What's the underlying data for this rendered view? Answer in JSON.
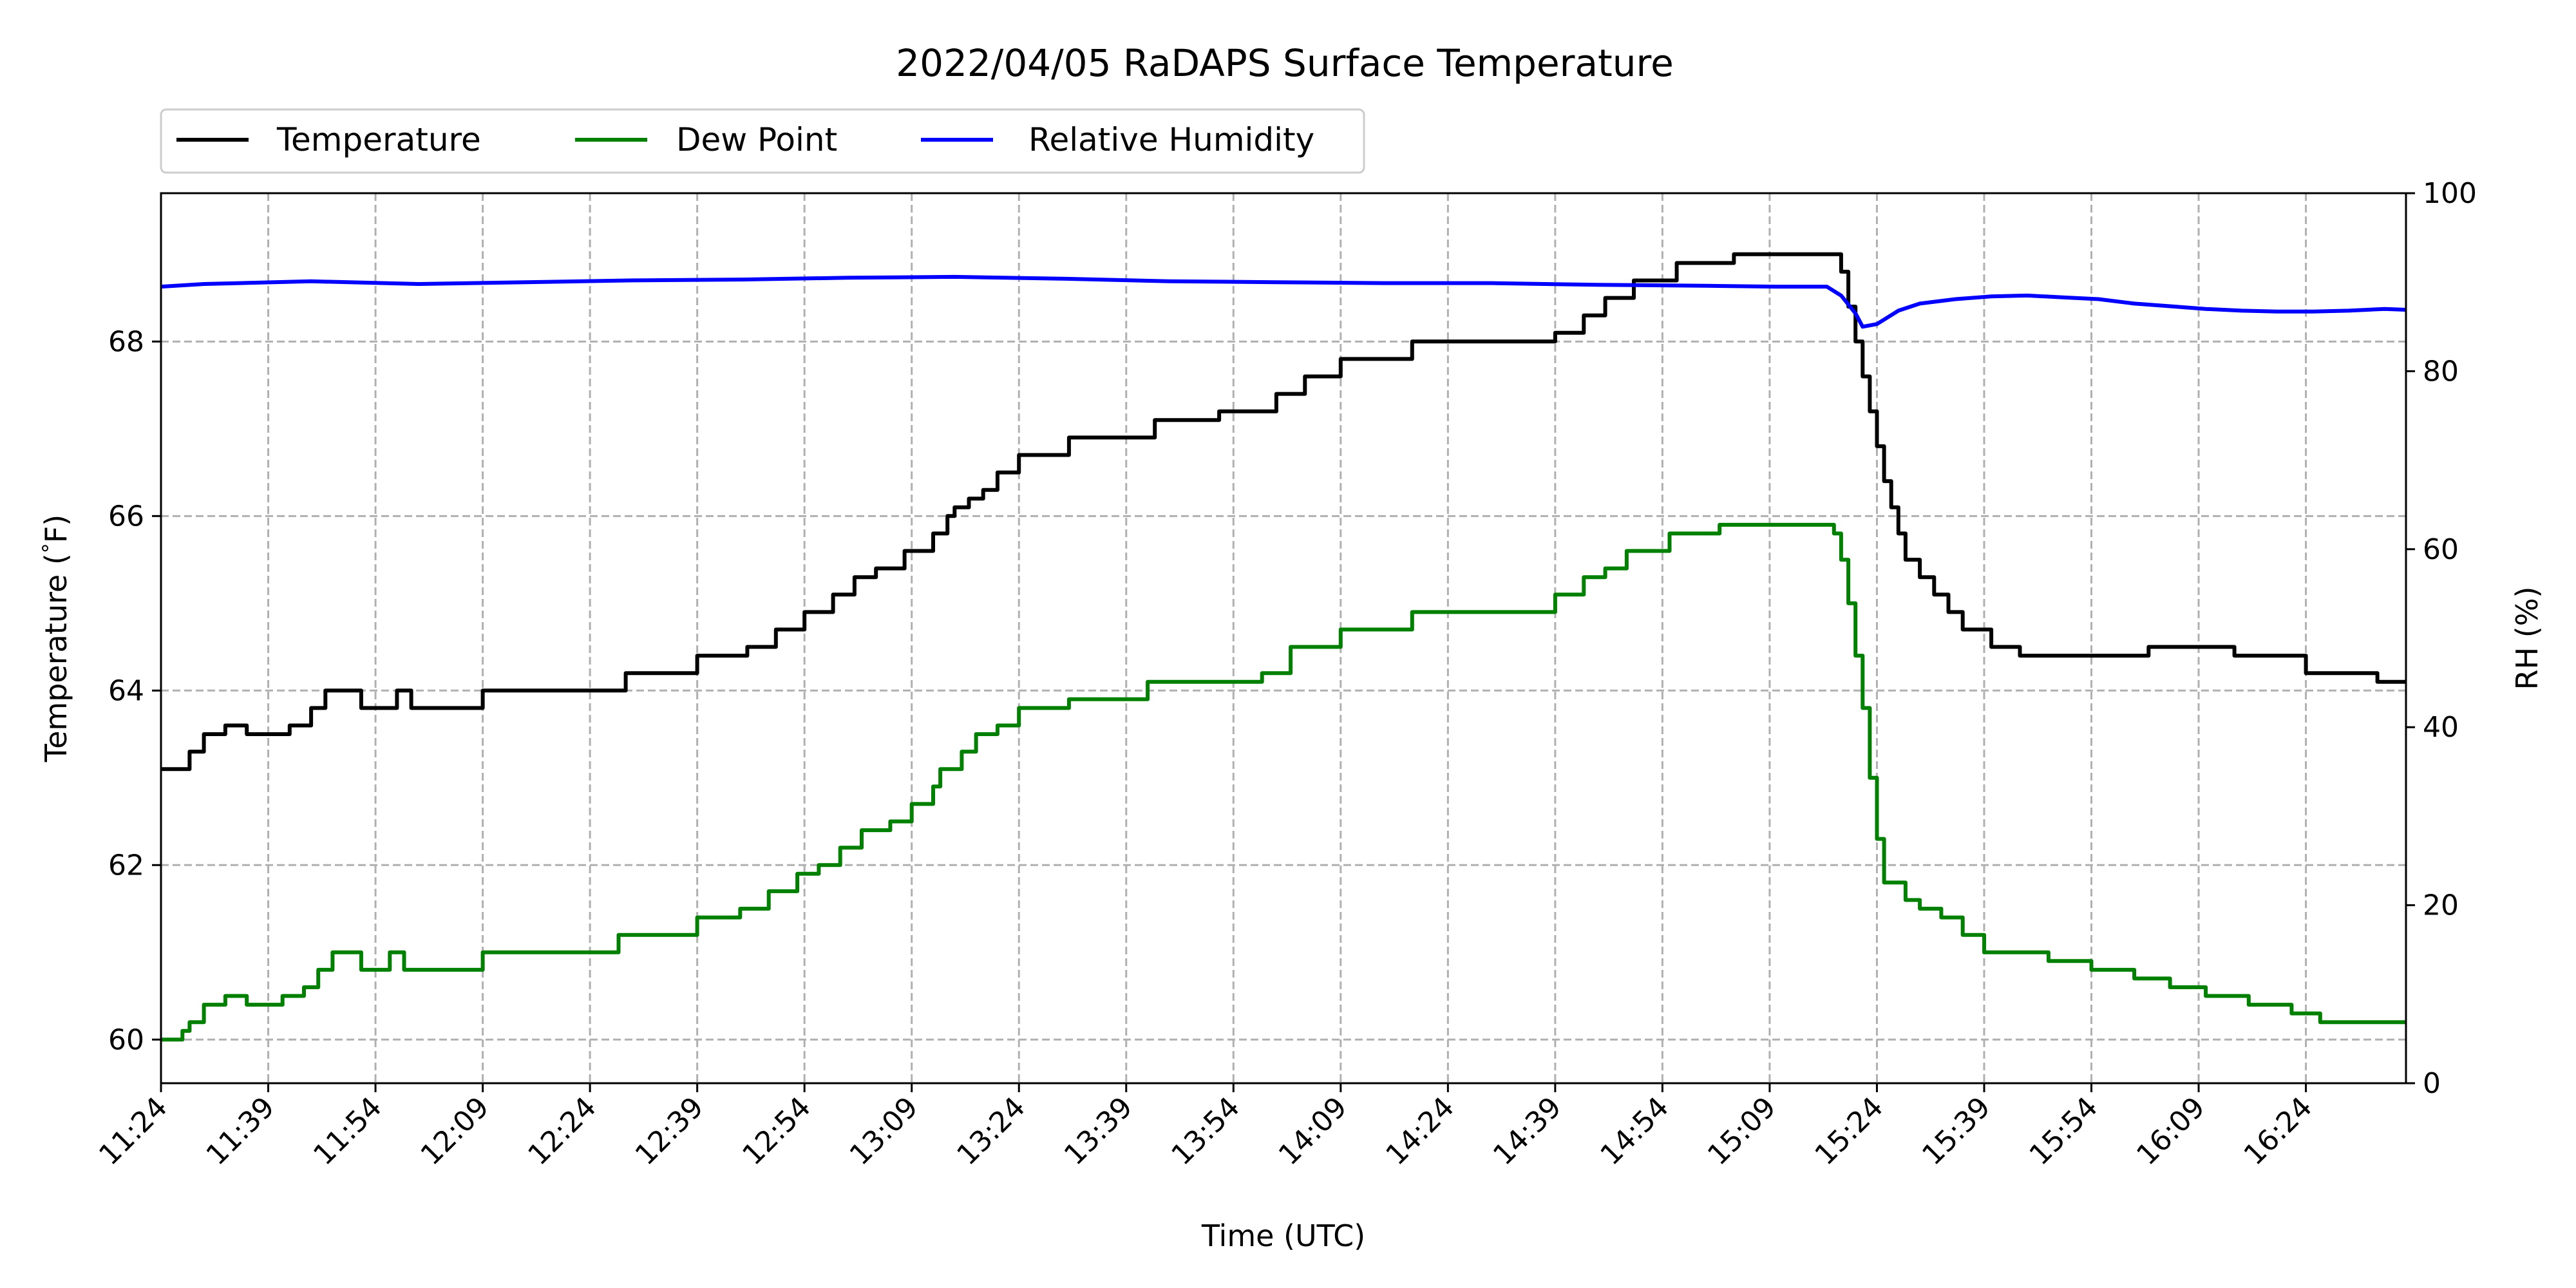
{
  "chart_data": {
    "type": "line",
    "title": "2022/04/05 RaDAPS Surface Temperature",
    "xlabel": "Time (UTC)",
    "ylabel": "Temperature ($^\\circ$F)",
    "ylabel_prefix": "Temperature (",
    "ylabel_deg": "°",
    "ylabel_suffix": "F)",
    "y2label": "RH (%)",
    "xlim_minutes": [
      "11:24",
      "16:38"
    ],
    "ylim": [
      59.5,
      69.7
    ],
    "y2lim": [
      0,
      100
    ],
    "grid": true,
    "legend_position": "top-left, above plot",
    "xticks": [
      "11:24",
      "11:39",
      "11:54",
      "12:09",
      "12:24",
      "12:39",
      "12:54",
      "13:09",
      "13:24",
      "13:39",
      "13:54",
      "14:09",
      "14:24",
      "14:39",
      "14:54",
      "15:09",
      "15:24",
      "15:39",
      "15:54",
      "16:09",
      "16:24"
    ],
    "yticks": [
      "60",
      "62",
      "64",
      "66",
      "68"
    ],
    "y2ticks": [
      "0",
      "20",
      "40",
      "60",
      "80",
      "100"
    ],
    "series": [
      {
        "name": "Temperature",
        "axis": "left",
        "color": "#000000",
        "step": true,
        "points": [
          [
            "11:24",
            63.1
          ],
          [
            "11:28",
            63.3
          ],
          [
            "11:30",
            63.5
          ],
          [
            "11:33",
            63.6
          ],
          [
            "11:36",
            63.5
          ],
          [
            "11:42",
            63.6
          ],
          [
            "11:45",
            63.8
          ],
          [
            "11:47",
            64.0
          ],
          [
            "11:52",
            63.8
          ],
          [
            "11:57",
            64.0
          ],
          [
            "11:59",
            63.8
          ],
          [
            "12:09",
            64.0
          ],
          [
            "12:19",
            64.0
          ],
          [
            "12:29",
            64.2
          ],
          [
            "12:33",
            64.2
          ],
          [
            "12:39",
            64.4
          ],
          [
            "12:46",
            64.5
          ],
          [
            "12:50",
            64.7
          ],
          [
            "12:54",
            64.9
          ],
          [
            "12:58",
            65.1
          ],
          [
            "13:01",
            65.3
          ],
          [
            "13:04",
            65.4
          ],
          [
            "13:08",
            65.6
          ],
          [
            "13:12",
            65.8
          ],
          [
            "13:14",
            66.0
          ],
          [
            "13:15",
            66.1
          ],
          [
            "13:17",
            66.2
          ],
          [
            "13:19",
            66.3
          ],
          [
            "13:21",
            66.5
          ],
          [
            "13:24",
            66.7
          ],
          [
            "13:30",
            66.7
          ],
          [
            "13:31",
            66.9
          ],
          [
            "13:43",
            67.1
          ],
          [
            "13:52",
            67.2
          ],
          [
            "13:58",
            67.2
          ],
          [
            "14:00",
            67.4
          ],
          [
            "14:04",
            67.6
          ],
          [
            "14:09",
            67.8
          ],
          [
            "14:19",
            68.0
          ],
          [
            "14:33",
            68.0
          ],
          [
            "14:39",
            68.1
          ],
          [
            "14:43",
            68.3
          ],
          [
            "14:46",
            68.5
          ],
          [
            "14:50",
            68.7
          ],
          [
            "14:56",
            68.9
          ],
          [
            "15:04",
            69.0
          ],
          [
            "15:18",
            69.0
          ],
          [
            "15:19",
            68.8
          ],
          [
            "15:20",
            68.4
          ],
          [
            "15:21",
            68.0
          ],
          [
            "15:22",
            67.6
          ],
          [
            "15:23",
            67.2
          ],
          [
            "15:24",
            66.8
          ],
          [
            "15:25",
            66.4
          ],
          [
            "15:26",
            66.1
          ],
          [
            "15:27",
            65.8
          ],
          [
            "15:28",
            65.5
          ],
          [
            "15:30",
            65.3
          ],
          [
            "15:32",
            65.1
          ],
          [
            "15:34",
            64.9
          ],
          [
            "15:36",
            64.7
          ],
          [
            "15:40",
            64.5
          ],
          [
            "15:44",
            64.4
          ],
          [
            "15:58",
            64.4
          ],
          [
            "16:02",
            64.5
          ],
          [
            "16:14",
            64.4
          ],
          [
            "16:24",
            64.2
          ],
          [
            "16:34",
            64.1
          ],
          [
            "16:38",
            64.1
          ]
        ]
      },
      {
        "name": "Dew Point",
        "axis": "left",
        "color": "#008000",
        "step": true,
        "points": [
          [
            "11:24",
            60.0
          ],
          [
            "11:27",
            60.1
          ],
          [
            "11:28",
            60.2
          ],
          [
            "11:30",
            60.4
          ],
          [
            "11:33",
            60.5
          ],
          [
            "11:36",
            60.4
          ],
          [
            "11:41",
            60.5
          ],
          [
            "11:44",
            60.6
          ],
          [
            "11:46",
            60.8
          ],
          [
            "11:48",
            61.0
          ],
          [
            "11:52",
            60.8
          ],
          [
            "11:56",
            61.0
          ],
          [
            "11:58",
            60.8
          ],
          [
            "12:04",
            60.8
          ],
          [
            "12:09",
            61.0
          ],
          [
            "12:17",
            61.0
          ],
          [
            "12:24",
            61.0
          ],
          [
            "12:28",
            61.2
          ],
          [
            "12:32",
            61.2
          ],
          [
            "12:39",
            61.4
          ],
          [
            "12:45",
            61.5
          ],
          [
            "12:49",
            61.7
          ],
          [
            "12:53",
            61.9
          ],
          [
            "12:56",
            62.0
          ],
          [
            "12:59",
            62.2
          ],
          [
            "13:02",
            62.4
          ],
          [
            "13:06",
            62.5
          ],
          [
            "13:09",
            62.7
          ],
          [
            "13:12",
            62.9
          ],
          [
            "13:13",
            63.1
          ],
          [
            "13:16",
            63.3
          ],
          [
            "13:18",
            63.5
          ],
          [
            "13:21",
            63.6
          ],
          [
            "13:24",
            63.8
          ],
          [
            "13:29",
            63.8
          ],
          [
            "13:31",
            63.9
          ],
          [
            "13:40",
            63.9
          ],
          [
            "13:42",
            64.1
          ],
          [
            "13:51",
            64.1
          ],
          [
            "13:58",
            64.2
          ],
          [
            "14:02",
            64.5
          ],
          [
            "14:09",
            64.7
          ],
          [
            "14:17",
            64.7
          ],
          [
            "14:19",
            64.9
          ],
          [
            "14:31",
            64.9
          ],
          [
            "14:39",
            65.1
          ],
          [
            "14:43",
            65.3
          ],
          [
            "14:46",
            65.4
          ],
          [
            "14:49",
            65.6
          ],
          [
            "14:55",
            65.8
          ],
          [
            "15:00",
            65.8
          ],
          [
            "15:02",
            65.9
          ],
          [
            "15:16",
            65.9
          ],
          [
            "15:18",
            65.8
          ],
          [
            "15:19",
            65.5
          ],
          [
            "15:20",
            65.0
          ],
          [
            "15:21",
            64.4
          ],
          [
            "15:22",
            63.8
          ],
          [
            "15:23",
            63.0
          ],
          [
            "15:24",
            62.3
          ],
          [
            "15:25",
            61.8
          ],
          [
            "15:28",
            61.6
          ],
          [
            "15:30",
            61.5
          ],
          [
            "15:33",
            61.4
          ],
          [
            "15:36",
            61.2
          ],
          [
            "15:39",
            61.0
          ],
          [
            "15:44",
            61.0
          ],
          [
            "15:48",
            60.9
          ],
          [
            "15:54",
            60.8
          ],
          [
            "16:00",
            60.7
          ],
          [
            "16:05",
            60.6
          ],
          [
            "16:10",
            60.5
          ],
          [
            "16:16",
            60.4
          ],
          [
            "16:22",
            60.3
          ],
          [
            "16:26",
            60.2
          ],
          [
            "16:32",
            60.2
          ],
          [
            "16:36",
            60.2
          ],
          [
            "16:38",
            60.2
          ]
        ]
      },
      {
        "name": "Relative Humidity",
        "axis": "right",
        "color": "#0000ff",
        "step": false,
        "points": [
          [
            "11:24",
            89.5
          ],
          [
            "11:30",
            89.8
          ],
          [
            "11:45",
            90.1
          ],
          [
            "12:00",
            89.8
          ],
          [
            "12:15",
            90.0
          ],
          [
            "12:30",
            90.2
          ],
          [
            "12:45",
            90.3
          ],
          [
            "13:00",
            90.5
          ],
          [
            "13:15",
            90.6
          ],
          [
            "13:30",
            90.4
          ],
          [
            "13:45",
            90.1
          ],
          [
            "14:00",
            90.0
          ],
          [
            "14:15",
            89.9
          ],
          [
            "14:30",
            89.9
          ],
          [
            "14:45",
            89.7
          ],
          [
            "15:00",
            89.6
          ],
          [
            "15:10",
            89.5
          ],
          [
            "15:17",
            89.5
          ],
          [
            "15:19",
            88.5
          ],
          [
            "15:21",
            86.5
          ],
          [
            "15:22",
            85.0
          ],
          [
            "15:24",
            85.3
          ],
          [
            "15:27",
            86.8
          ],
          [
            "15:30",
            87.6
          ],
          [
            "15:35",
            88.1
          ],
          [
            "15:40",
            88.4
          ],
          [
            "15:45",
            88.5
          ],
          [
            "15:50",
            88.3
          ],
          [
            "15:55",
            88.1
          ],
          [
            "16:00",
            87.6
          ],
          [
            "16:05",
            87.3
          ],
          [
            "16:10",
            87.0
          ],
          [
            "16:15",
            86.8
          ],
          [
            "16:20",
            86.7
          ],
          [
            "16:25",
            86.7
          ],
          [
            "16:30",
            86.8
          ],
          [
            "16:35",
            87.0
          ],
          [
            "16:38",
            86.9
          ]
        ]
      }
    ]
  }
}
